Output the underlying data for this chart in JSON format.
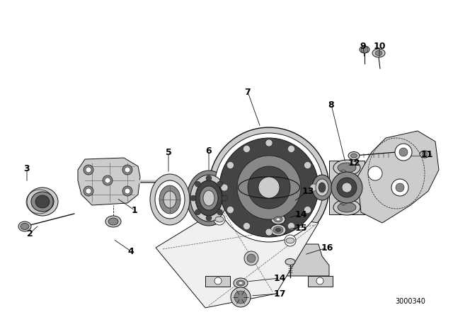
{
  "bg_color": "#ffffff",
  "fig_width": 6.4,
  "fig_height": 4.48,
  "dpi": 100,
  "watermark": "3000340",
  "lc": "#111111",
  "lc_light": "#555555",
  "gray_dark": "#444444",
  "gray_mid": "#888888",
  "gray_light": "#cccccc",
  "gray_fill": "#e8e8e8",
  "white": "#ffffff",
  "label_fontsize": 9,
  "label_color": "#000000",
  "wm_fontsize": 7
}
